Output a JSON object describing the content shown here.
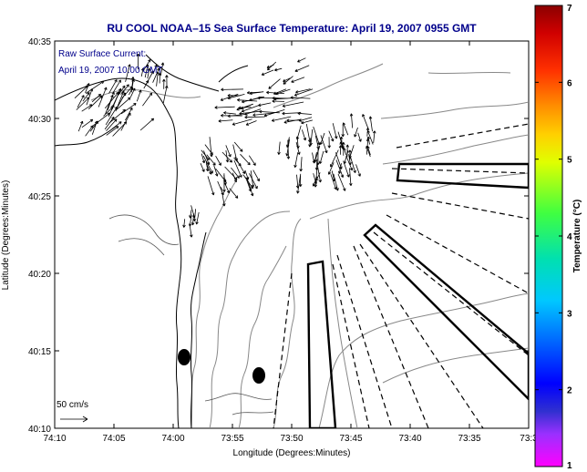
{
  "title": "RU COOL  NOAA–15  Sea Surface Temperature:  April 19, 2007 0955 GMT",
  "legend": {
    "line1": "Raw Surface Current:",
    "line2": "April 19, 2007 10:00 GMT"
  },
  "scale_label": "50 cm/s",
  "x_axis": {
    "label": "Longitude (Degrees:Minutes)",
    "ticks": [
      "74:10",
      "74:05",
      "74:00",
      "73:55",
      "73:50",
      "73:45",
      "73:40",
      "73:35",
      "73:3"
    ]
  },
  "y_axis": {
    "label": "Latitude (Degrees:Minutes)",
    "ticks": [
      "40:35",
      "40:30",
      "40:25",
      "40:20",
      "40:15",
      "40:10"
    ]
  },
  "colorbar": {
    "label": "Temperature (°C)",
    "ticks": [
      "7",
      "6",
      "5",
      "4",
      "3",
      "2",
      "1"
    ]
  }
}
